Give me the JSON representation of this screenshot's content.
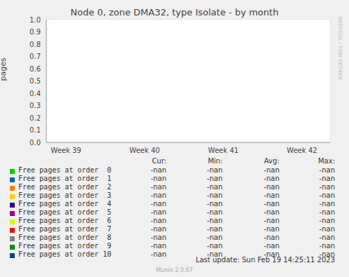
{
  "chart_data": {
    "type": "line",
    "title": "Node 0, zone DMA32, type Isolate - by month",
    "y_label": "pages",
    "categories": [
      "Week 39",
      "Week 40",
      "Week 41",
      "Week 42"
    ],
    "ylim": [
      0,
      1
    ],
    "yticks": [
      {
        "value": 0,
        "label": "0.0"
      },
      0.1,
      0.2,
      0.3,
      0.4,
      0.5,
      0.6,
      0.7,
      0.8,
      0.9,
      {
        "value": 1,
        "label": "1.0"
      }
    ],
    "grid": true,
    "legend": "bottom",
    "legend_columns": [
      "Cur:",
      "Min:",
      "Avg:",
      "Max:"
    ],
    "series": [
      {
        "name": "Free pages at order  0",
        "color": "#00cc00",
        "values": [
          null,
          null,
          null,
          null
        ],
        "stats": [
          "-nan",
          "-nan",
          "-nan",
          "-nan"
        ]
      },
      {
        "name": "Free pages at order  1",
        "color": "#0066b3",
        "values": [
          null,
          null,
          null,
          null
        ],
        "stats": [
          "-nan",
          "-nan",
          "-nan",
          "-nan"
        ]
      },
      {
        "name": "Free pages at order  2",
        "color": "#ff8000",
        "values": [
          null,
          null,
          null,
          null
        ],
        "stats": [
          "-nan",
          "-nan",
          "-nan",
          "-nan"
        ]
      },
      {
        "name": "Free pages at order  3",
        "color": "#ffcc00",
        "values": [
          null,
          null,
          null,
          null
        ],
        "stats": [
          "-nan",
          "-nan",
          "-nan",
          "-nan"
        ]
      },
      {
        "name": "Free pages at order  4",
        "color": "#330099",
        "values": [
          null,
          null,
          null,
          null
        ],
        "stats": [
          "-nan",
          "-nan",
          "-nan",
          "-nan"
        ]
      },
      {
        "name": "Free pages at order  5",
        "color": "#990099",
        "values": [
          null,
          null,
          null,
          null
        ],
        "stats": [
          "-nan",
          "-nan",
          "-nan",
          "-nan"
        ]
      },
      {
        "name": "Free pages at order  6",
        "color": "#ccff00",
        "values": [
          null,
          null,
          null,
          null
        ],
        "stats": [
          "-nan",
          "-nan",
          "-nan",
          "-nan"
        ]
      },
      {
        "name": "Free pages at order  7",
        "color": "#ff0000",
        "values": [
          null,
          null,
          null,
          null
        ],
        "stats": [
          "-nan",
          "-nan",
          "-nan",
          "-nan"
        ]
      },
      {
        "name": "Free pages at order  8",
        "color": "#808080",
        "values": [
          null,
          null,
          null,
          null
        ],
        "stats": [
          "-nan",
          "-nan",
          "-nan",
          "-nan"
        ]
      },
      {
        "name": "Free pages at order  9",
        "color": "#008f00",
        "values": [
          null,
          null,
          null,
          null
        ],
        "stats": [
          "-nan",
          "-nan",
          "-nan",
          "-nan"
        ]
      },
      {
        "name": "Free pages at order 10",
        "color": "#00487d",
        "values": [
          null,
          null,
          null,
          null
        ],
        "stats": [
          "-nan",
          "-nan",
          "-nan",
          "-nan"
        ]
      }
    ],
    "footer": "Last update: Sun Feb 19 14:25:11 2023",
    "generator": "Munin 2.0.67",
    "watermark": "RRDTOOL / TOBI OETIKER"
  }
}
